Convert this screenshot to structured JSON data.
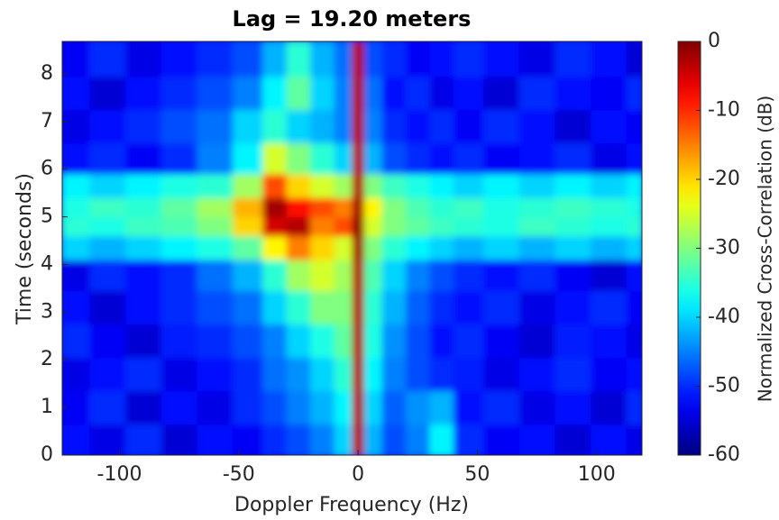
{
  "chart_data": {
    "type": "heatmap",
    "title": "Lag = 19.20 meters",
    "xlabel": "Doppler Frequency (Hz)",
    "ylabel": "Time (seconds)",
    "colorbar_label": "Normalized Cross-Correlation (dB)",
    "colormap": "jet",
    "xlim": [
      -124,
      119
    ],
    "xticks": [
      -100,
      -50,
      0,
      50,
      100
    ],
    "ylim": [
      0,
      8.68
    ],
    "yticks": [
      0,
      1,
      2,
      3,
      4,
      5,
      6,
      7,
      8
    ],
    "clim": [
      -60,
      0
    ],
    "cticks": [
      0,
      -10,
      -20,
      -30,
      -40,
      -50,
      -60
    ],
    "x": [
      -120,
      -105,
      -90,
      -75,
      -60,
      -45,
      -35,
      -25,
      -15,
      -5,
      0,
      5,
      15,
      25,
      35,
      45,
      60,
      75,
      90,
      105,
      120
    ],
    "y": [
      0.3,
      1,
      1.7,
      2.4,
      3.1,
      3.8,
      4.4,
      4.8,
      5.2,
      5.6,
      6.2,
      6.9,
      7.6,
      8.3
    ],
    "z": [
      [
        -52,
        -54,
        -50,
        -55,
        -52,
        -53,
        -50,
        -48,
        -45,
        -40,
        -3,
        -42,
        -48,
        -45,
        -38,
        -50,
        -53,
        -52,
        -55,
        -52,
        -54
      ],
      [
        -53,
        -50,
        -55,
        -52,
        -54,
        -50,
        -48,
        -45,
        -42,
        -38,
        -3,
        -40,
        -47,
        -44,
        -42,
        -52,
        -50,
        -54,
        -52,
        -55,
        -50
      ],
      [
        -54,
        -52,
        -50,
        -54,
        -52,
        -50,
        -46,
        -44,
        -40,
        -35,
        -3,
        -38,
        -45,
        -48,
        -50,
        -51,
        -54,
        -52,
        -50,
        -53,
        -52
      ],
      [
        -50,
        -53,
        -55,
        -51,
        -50,
        -48,
        -45,
        -40,
        -36,
        -32,
        -3,
        -36,
        -44,
        -48,
        -52,
        -50,
        -53,
        -55,
        -51,
        -52,
        -54
      ],
      [
        -52,
        -55,
        -52,
        -50,
        -48,
        -46,
        -40,
        -35,
        -30,
        -30,
        -3,
        -35,
        -42,
        -47,
        -50,
        -52,
        -50,
        -54,
        -52,
        -50,
        -53
      ],
      [
        -54,
        -50,
        -52,
        -50,
        -46,
        -42,
        -35,
        -28,
        -25,
        -28,
        -3,
        -33,
        -40,
        -45,
        -48,
        -50,
        -52,
        -50,
        -53,
        -55,
        -52
      ],
      [
        -40,
        -42,
        -40,
        -38,
        -36,
        -32,
        -22,
        -15,
        -20,
        -25,
        -2,
        -30,
        -35,
        -38,
        -40,
        -42,
        -40,
        -42,
        -40,
        -42,
        -40
      ],
      [
        -35,
        -36,
        -34,
        -33,
        -30,
        -20,
        -5,
        -3,
        -15,
        -12,
        -1,
        -25,
        -30,
        -32,
        -34,
        -35,
        -36,
        -34,
        -35,
        -36,
        -35
      ],
      [
        -36,
        -34,
        -35,
        -32,
        -28,
        -18,
        -2,
        -8,
        -12,
        -15,
        -2,
        -22,
        -30,
        -33,
        -35,
        -34,
        -36,
        -35,
        -34,
        -35,
        -36
      ],
      [
        -38,
        -40,
        -38,
        -36,
        -35,
        -28,
        -12,
        -20,
        -25,
        -28,
        -3,
        -30,
        -34,
        -36,
        -38,
        -40,
        -38,
        -40,
        -38,
        -40,
        -38
      ],
      [
        -52,
        -50,
        -53,
        -50,
        -45,
        -38,
        -25,
        -30,
        -35,
        -40,
        -3,
        -42,
        -48,
        -50,
        -52,
        -50,
        -53,
        -52,
        -50,
        -54,
        -52
      ],
      [
        -54,
        -52,
        -50,
        -48,
        -46,
        -40,
        -35,
        -40,
        -42,
        -45,
        -3,
        -45,
        -50,
        -52,
        -50,
        -53,
        -50,
        -52,
        -55,
        -52,
        -53
      ],
      [
        -52,
        -55,
        -52,
        -50,
        -48,
        -45,
        -38,
        -32,
        -40,
        -45,
        -3,
        -46,
        -52,
        -50,
        -54,
        -52,
        -55,
        -50,
        -52,
        -53,
        -50
      ],
      [
        -53,
        -50,
        -54,
        -52,
        -50,
        -48,
        -42,
        -35,
        -42,
        -46,
        -3,
        -48,
        -50,
        -53,
        -52,
        -50,
        -52,
        -54,
        -50,
        -52,
        -55
      ]
    ]
  }
}
